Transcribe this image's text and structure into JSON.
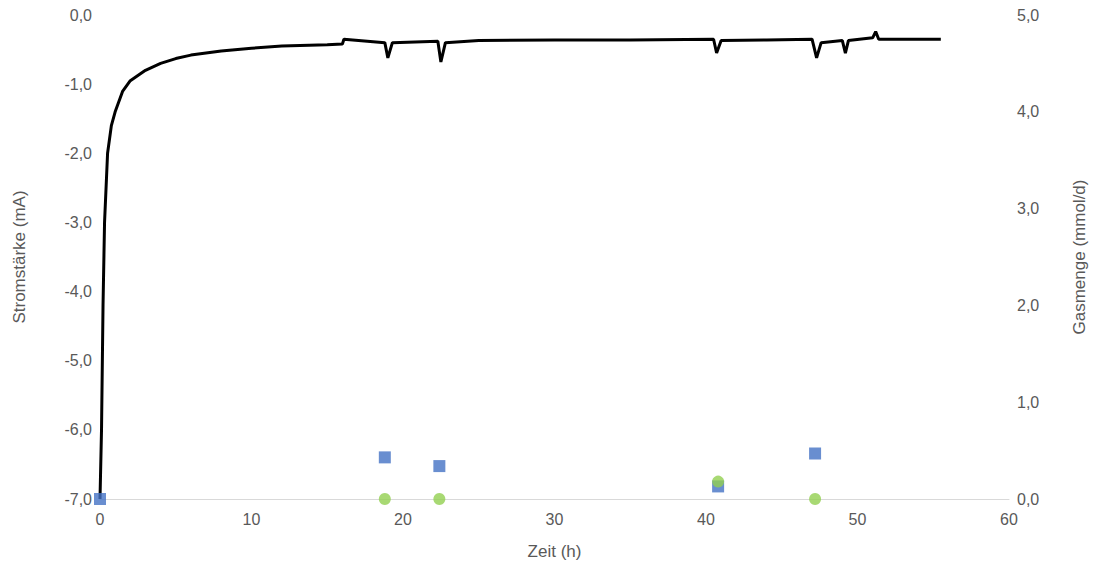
{
  "chart_data": {
    "type": "line",
    "x_label": "Zeit (h)",
    "y_label": "Stromstärke (mA)",
    "y2_label": "Gasmenge (mmol/d)",
    "xlim": [
      0,
      60
    ],
    "xticks": [
      0,
      10,
      20,
      30,
      40,
      50,
      60
    ],
    "ylim": [
      -7,
      0
    ],
    "yticks": [
      {
        "value": -7,
        "label": "-7,0"
      },
      {
        "value": -6,
        "label": "-6,0"
      },
      {
        "value": -5,
        "label": "-5,0"
      },
      {
        "value": -4,
        "label": "-4,0"
      },
      {
        "value": -3,
        "label": "-3,0"
      },
      {
        "value": -2,
        "label": "-2,0"
      },
      {
        "value": -1,
        "label": "-1,0"
      },
      {
        "value": 0,
        "label": "0,0"
      }
    ],
    "y2lim": [
      0,
      5
    ],
    "y2ticks": [
      {
        "value": 0,
        "label": "0,0"
      },
      {
        "value": 1,
        "label": "1,0"
      },
      {
        "value": 2,
        "label": "2,0"
      },
      {
        "value": 3,
        "label": "3,0"
      },
      {
        "value": 4,
        "label": "4,0"
      },
      {
        "value": 5,
        "label": "5,0"
      }
    ],
    "grid": false,
    "series": [
      {
        "type": "line",
        "color": "#000000",
        "line_style": "solid",
        "x": [
          0,
          0.1,
          0.2,
          0.3,
          0.5,
          0.75,
          1,
          1.5,
          2,
          3,
          4,
          5,
          6,
          8,
          10,
          12,
          15,
          16,
          16.1,
          18.8,
          19,
          19.3,
          22.3,
          22.5,
          22.8,
          25,
          30,
          35,
          40.5,
          40.7,
          41,
          44,
          47,
          47.3,
          47.6,
          49,
          49.2,
          49.4,
          51,
          51.2,
          51.4,
          53,
          55.5
        ],
        "values": [
          -7,
          -6,
          -4.2,
          -3,
          -2,
          -1.6,
          -1.4,
          -1.1,
          -0.95,
          -0.8,
          -0.7,
          -0.63,
          -0.58,
          -0.52,
          -0.48,
          -0.45,
          -0.43,
          -0.42,
          -0.35,
          -0.4,
          -0.62,
          -0.4,
          -0.38,
          -0.68,
          -0.4,
          -0.37,
          -0.36,
          -0.36,
          -0.35,
          -0.55,
          -0.37,
          -0.36,
          -0.35,
          -0.62,
          -0.4,
          -0.37,
          -0.55,
          -0.37,
          -0.33,
          -0.24,
          -0.35,
          -0.35,
          -0.35
        ]
      },
      {
        "type": "scatter",
        "color": "#4472c4",
        "marker": "square",
        "axis": "y2",
        "x": [
          0,
          18.8,
          22.4,
          40.8,
          47.2
        ],
        "values": [
          0,
          0.43,
          0.34,
          0.13,
          0.47
        ]
      },
      {
        "type": "scatter",
        "color": "#92d050",
        "marker": "circle",
        "axis": "y2",
        "x": [
          18.8,
          22.4,
          40.8,
          47.2
        ],
        "values": [
          0,
          0,
          0.18,
          0
        ]
      }
    ]
  }
}
